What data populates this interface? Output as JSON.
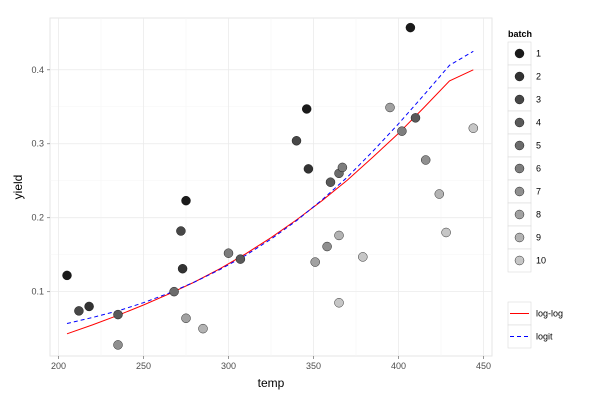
{
  "chart_data": {
    "type": "scatter",
    "xlabel": "temp",
    "ylabel": "yield",
    "xlim": [
      195,
      455
    ],
    "ylim": [
      0.013,
      0.47
    ],
    "x_ticks": [
      200,
      250,
      300,
      350,
      400,
      450
    ],
    "y_ticks": [
      0.1,
      0.2,
      0.3,
      0.4
    ],
    "x_tick_labels": [
      "200",
      "250",
      "300",
      "350",
      "400",
      "450"
    ],
    "y_tick_labels": [
      "0.1",
      "0.2",
      "0.3",
      "0.4"
    ],
    "grid": true,
    "legend_position": "right",
    "points_legend": {
      "title": "batch",
      "entries": [
        {
          "label": "1",
          "color": "#1a1a1a"
        },
        {
          "label": "2",
          "color": "#333333"
        },
        {
          "label": "3",
          "color": "#474747"
        },
        {
          "label": "4",
          "color": "#595959"
        },
        {
          "label": "5",
          "color": "#6b6b6b"
        },
        {
          "label": "6",
          "color": "#7d7d7d"
        },
        {
          "label": "7",
          "color": "#8f8f8f"
        },
        {
          "label": "8",
          "color": "#a1a1a1"
        },
        {
          "label": "9",
          "color": "#b3b3b3"
        },
        {
          "label": "10",
          "color": "#c6c6c6"
        }
      ]
    },
    "points": [
      {
        "x": 205,
        "y": 0.122,
        "batch": "1"
      },
      {
        "x": 275,
        "y": 0.223,
        "batch": "1"
      },
      {
        "x": 346,
        "y": 0.347,
        "batch": "1"
      },
      {
        "x": 407,
        "y": 0.457,
        "batch": "1"
      },
      {
        "x": 218,
        "y": 0.08,
        "batch": "2"
      },
      {
        "x": 273,
        "y": 0.131,
        "batch": "2"
      },
      {
        "x": 347,
        "y": 0.266,
        "batch": "2"
      },
      {
        "x": 212,
        "y": 0.074,
        "batch": "3"
      },
      {
        "x": 272,
        "y": 0.182,
        "batch": "3"
      },
      {
        "x": 340,
        "y": 0.304,
        "batch": "3"
      },
      {
        "x": 235,
        "y": 0.069,
        "batch": "4"
      },
      {
        "x": 307,
        "y": 0.144,
        "batch": "4"
      },
      {
        "x": 360,
        "y": 0.248,
        "batch": "4"
      },
      {
        "x": 410,
        "y": 0.335,
        "batch": "4"
      },
      {
        "x": 268,
        "y": 0.1,
        "batch": "5"
      },
      {
        "x": 365,
        "y": 0.26,
        "batch": "5"
      },
      {
        "x": 300,
        "y": 0.152,
        "batch": "6"
      },
      {
        "x": 367,
        "y": 0.268,
        "batch": "6"
      },
      {
        "x": 402,
        "y": 0.317,
        "batch": "6"
      },
      {
        "x": 235,
        "y": 0.028,
        "batch": "7"
      },
      {
        "x": 358,
        "y": 0.161,
        "batch": "7"
      },
      {
        "x": 416,
        "y": 0.278,
        "batch": "7"
      },
      {
        "x": 275,
        "y": 0.064,
        "batch": "8"
      },
      {
        "x": 351,
        "y": 0.14,
        "batch": "8"
      },
      {
        "x": 395,
        "y": 0.349,
        "batch": "8"
      },
      {
        "x": 285,
        "y": 0.05,
        "batch": "9"
      },
      {
        "x": 365,
        "y": 0.176,
        "batch": "9"
      },
      {
        "x": 424,
        "y": 0.232,
        "batch": "9"
      },
      {
        "x": 365,
        "y": 0.085,
        "batch": "10"
      },
      {
        "x": 379,
        "y": 0.147,
        "batch": "10"
      },
      {
        "x": 428,
        "y": 0.18,
        "batch": "10"
      },
      {
        "x": 444,
        "y": 0.321,
        "batch": "10"
      }
    ],
    "series": [
      {
        "name": "log-log",
        "color": "#ff0000",
        "dash": "solid",
        "x": [
          205,
          220,
          235,
          250,
          265,
          280,
          295,
          310,
          325,
          340,
          355,
          370,
          385,
          400,
          415,
          430,
          444
        ],
        "values": [
          0.043,
          0.055,
          0.068,
          0.082,
          0.097,
          0.113,
          0.131,
          0.151,
          0.173,
          0.197,
          0.223,
          0.251,
          0.282,
          0.314,
          0.349,
          0.385,
          0.4
        ]
      },
      {
        "name": "logit",
        "color": "#0000ff",
        "dash": "dashed",
        "x": [
          205,
          220,
          235,
          250,
          265,
          280,
          295,
          310,
          325,
          340,
          355,
          370,
          385,
          400,
          415,
          430,
          444
        ],
        "values": [
          0.057,
          0.065,
          0.074,
          0.085,
          0.098,
          0.113,
          0.13,
          0.149,
          0.171,
          0.196,
          0.224,
          0.255,
          0.29,
          0.327,
          0.366,
          0.406,
          0.425
        ]
      }
    ]
  }
}
